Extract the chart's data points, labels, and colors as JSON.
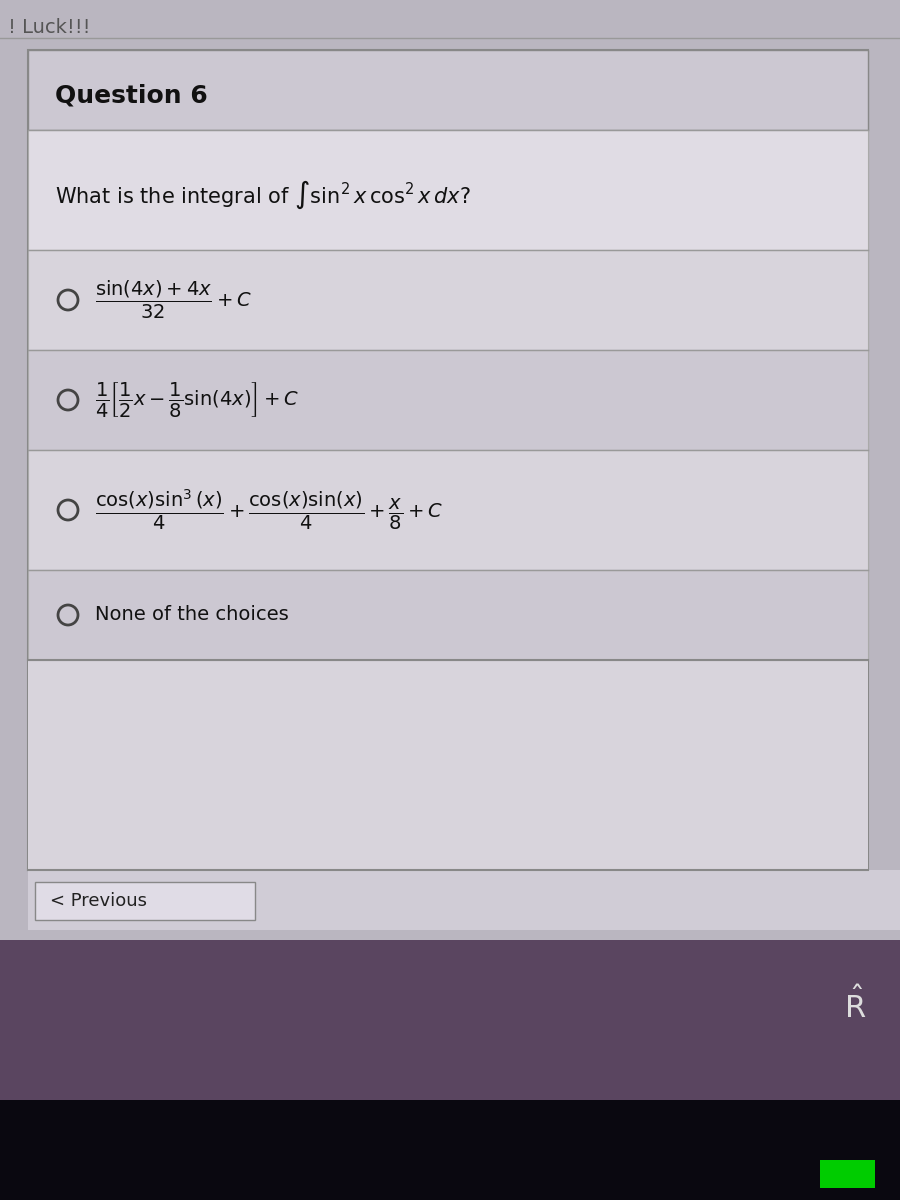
{
  "title_partial": "! Luck!!!",
  "question_label": "Question 6",
  "question_text": "What is the integral of $\\int \\sin^2 x \\, \\cos^2 x \\, dx$?",
  "choice1": "$\\dfrac{\\sin(4x)+4x}{32} + C$",
  "choice2": "$\\dfrac{1}{4}\\left[\\dfrac{1}{2}x - \\dfrac{1}{8}\\sin(4x)\\right] + C$",
  "choice3": "$\\dfrac{\\cos(x)\\sin^3(x)}{4} + \\dfrac{\\cos(x)\\sin(x)}{4} + \\dfrac{x}{8} + C$",
  "choice4": "None of the choices",
  "footer": "< Previous",
  "bg_color": "#c2bec8",
  "content_box_color": "#dedad e",
  "header_box_color": "#ccc8d0",
  "choice_odd_color": "#d5d1d9",
  "choice_even_color": "#ccc8d2",
  "taskbar_color": "#6a5070",
  "bottom_bar_color": "#1a1018",
  "text_dark": "#111111",
  "text_light": "#cccccc",
  "border_color": "#aaaaaa",
  "green_color": "#00cc00"
}
